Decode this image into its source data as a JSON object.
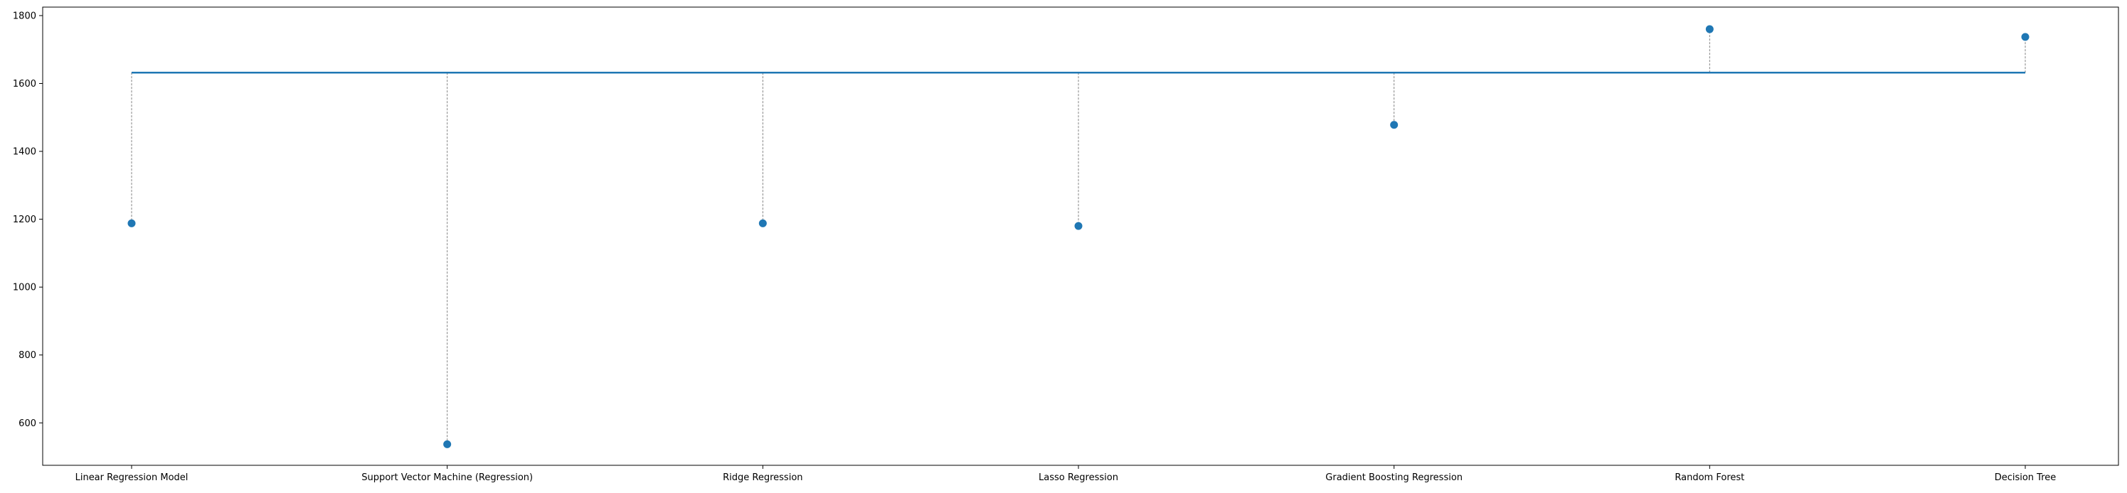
{
  "chart_data": {
    "type": "scatter",
    "categories": [
      "Linear Regression Model",
      "Support Vector Machine (Regression)",
      "Ridge Regression",
      "Lasso Regression",
      "Gradient Boosting Regression",
      "Random Forest",
      "Decision Tree"
    ],
    "values": [
      1188,
      537,
      1188,
      1180,
      1478,
      1760,
      1737
    ],
    "reference_line": {
      "value": 1632
    },
    "ylim": [
      475,
      1825
    ],
    "yticks": [
      600,
      800,
      1000,
      1200,
      1400,
      1600,
      1800
    ],
    "grid": false,
    "colors": {
      "points": "#1f77b4",
      "reference_line": "#1f77b4",
      "stems": "#808080"
    }
  }
}
